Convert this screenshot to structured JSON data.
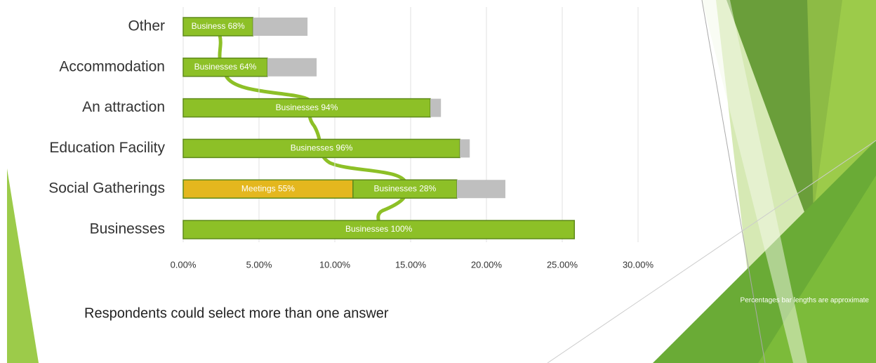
{
  "chart_data": {
    "type": "stacked-barh",
    "categories": [
      "Other",
      "Accommodation",
      "An attraction",
      "Education Facility",
      "Social Gatherings",
      "Businesses"
    ],
    "series": [
      {
        "color": "#e4b71e",
        "values": [
          null,
          null,
          null,
          null,
          11.2,
          null
        ],
        "segment_labels": [
          null,
          null,
          null,
          null,
          "Meetings 55%",
          null
        ]
      },
      {
        "color": "#8dc027",
        "values": [
          4.6,
          5.55,
          16.3,
          18.25,
          6.85,
          25.8
        ],
        "segment_labels": [
          "Business 68%",
          "Businesses 64%",
          "Businesses 94%",
          "Businesses 96%",
          "Businesses 28%",
          "Businesses 100%"
        ]
      },
      {
        "color": "#bfbfbf",
        "values": [
          3.6,
          3.25,
          0.7,
          0.65,
          3.2,
          null
        ]
      }
    ],
    "xlim": [
      0,
      30
    ],
    "xticks": [
      {
        "value": 0,
        "label": "0.00%"
      },
      {
        "value": 5,
        "label": "5.00%"
      },
      {
        "value": 10,
        "label": "10.00%"
      },
      {
        "value": 15,
        "label": "15.00%"
      },
      {
        "value": 20,
        "label": "20.00%"
      },
      {
        "value": 25,
        "label": "25.00%"
      },
      {
        "value": 30,
        "label": "30.00%"
      }
    ],
    "grid": true,
    "footnote": "Respondents could select more than one answer",
    "side_note": "Percentages bar lengths are approximate"
  }
}
